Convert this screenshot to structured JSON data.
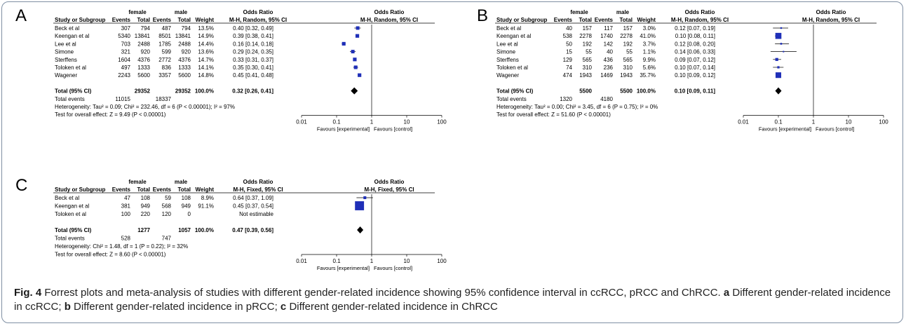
{
  "figure": {
    "caption_label": "Fig. 4",
    "caption_text": "Forrest plots and meta-analysis of studies with different gender-related incidence showing 95% confidence interval in ccRCC, pRCC and ChRCC.",
    "caption_a_label": "a",
    "caption_a": "Different gender-related incidence in ccRCC;",
    "caption_b_label": "b",
    "caption_b": "Different gender-related incidence in pRCC;",
    "caption_c_label": "c",
    "caption_c": "Different gender-related incidence in ChRCC"
  },
  "colors": {
    "marker": "#1f2fb8",
    "diamond": "#000000",
    "frame": "#7f8fa3"
  },
  "chart_data": [
    {
      "panel": "A",
      "type": "forest",
      "method": "M-H, Random, 95% CI",
      "group1": "female",
      "group2": "male",
      "col_headers": [
        "Study or Subgroup",
        "Events",
        "Total",
        "Events",
        "Total",
        "Weight"
      ],
      "or_header": "Odds Ratio",
      "studies": [
        {
          "name": "Beck et al",
          "e1": "307",
          "t1": "794",
          "e2": "487",
          "t2": "794",
          "weight": "13.5%",
          "ci_text": "0.40 [0.32, 0.49]",
          "or": 0.4,
          "lo": 0.32,
          "hi": 0.49,
          "w": 13.5
        },
        {
          "name": "Keengan et al",
          "e1": "5340",
          "t1": "13841",
          "e2": "8501",
          "t2": "13841",
          "weight": "14.9%",
          "ci_text": "0.39 [0.38, 0.41]",
          "or": 0.39,
          "lo": 0.38,
          "hi": 0.41,
          "w": 14.9
        },
        {
          "name": "Lee et al",
          "e1": "703",
          "t1": "2488",
          "e2": "1785",
          "t2": "2488",
          "weight": "14.4%",
          "ci_text": "0.16 [0.14, 0.18]",
          "or": 0.16,
          "lo": 0.14,
          "hi": 0.18,
          "w": 14.4
        },
        {
          "name": "Simone",
          "e1": "321",
          "t1": "920",
          "e2": "599",
          "t2": "920",
          "weight": "13.6%",
          "ci_text": "0.29 [0.24, 0.35]",
          "or": 0.29,
          "lo": 0.24,
          "hi": 0.35,
          "w": 13.6
        },
        {
          "name": "Sterffens",
          "e1": "1604",
          "t1": "4376",
          "e2": "2772",
          "t2": "4376",
          "weight": "14.7%",
          "ci_text": "0.33 [0.31, 0.37]",
          "or": 0.33,
          "lo": 0.31,
          "hi": 0.37,
          "w": 14.7
        },
        {
          "name": "Toloken et  al",
          "e1": "497",
          "t1": "1333",
          "e2": "836",
          "t2": "1333",
          "weight": "14.1%",
          "ci_text": "0.35 [0.30, 0.41]",
          "or": 0.35,
          "lo": 0.3,
          "hi": 0.41,
          "w": 14.1
        },
        {
          "name": "Wagener",
          "e1": "2243",
          "t1": "5600",
          "e2": "3357",
          "t2": "5600",
          "weight": "14.8%",
          "ci_text": "0.45 [0.41, 0.48]",
          "or": 0.45,
          "lo": 0.41,
          "hi": 0.48,
          "w": 14.8
        }
      ],
      "total": {
        "label": "Total (95% CI)",
        "t1": "29352",
        "t2": "29352",
        "weight": "100.0%",
        "ci_text": "0.32 [0.26, 0.41]",
        "or": 0.32,
        "lo": 0.26,
        "hi": 0.41
      },
      "events": {
        "label": "Total events",
        "e1": "11015",
        "e2": "18337"
      },
      "heterogeneity": "Heterogeneity: Tau² = 0.09; Chi² = 232.46, df = 6 (P < 0.00001); I² = 97%",
      "overall": "Test for overall effect: Z = 9.49 (P < 0.00001)",
      "x_ticks": [
        0.01,
        0.1,
        1,
        10,
        100
      ],
      "x_tick_labels": [
        "0.01",
        "0.1",
        "1",
        "10",
        "100"
      ],
      "x_scale": "log",
      "favours_left": "Favours [experimental]",
      "favours_right": "Favours [control]"
    },
    {
      "panel": "B",
      "type": "forest",
      "method": "M-H, Random, 95% CI",
      "group1": "female",
      "group2": "male",
      "col_headers": [
        "Study or Subgroup",
        "Events",
        "Total",
        "Events",
        "Total",
        "Weight"
      ],
      "or_header": "Odds Ratio",
      "studies": [
        {
          "name": "Beck et al",
          "e1": "40",
          "t1": "157",
          "e2": "117",
          "t2": "157",
          "weight": "3.0%",
          "ci_text": "0.12 [0.07, 0.19]",
          "or": 0.12,
          "lo": 0.07,
          "hi": 0.19,
          "w": 3.0
        },
        {
          "name": "Keengan et al",
          "e1": "538",
          "t1": "2278",
          "e2": "1740",
          "t2": "2278",
          "weight": "41.0%",
          "ci_text": "0.10 [0.08, 0.11]",
          "or": 0.1,
          "lo": 0.08,
          "hi": 0.11,
          "w": 41.0
        },
        {
          "name": "Lee et al",
          "e1": "50",
          "t1": "192",
          "e2": "142",
          "t2": "192",
          "weight": "3.7%",
          "ci_text": "0.12 [0.08, 0.20]",
          "or": 0.12,
          "lo": 0.08,
          "hi": 0.2,
          "w": 3.7
        },
        {
          "name": "Simone",
          "e1": "15",
          "t1": "55",
          "e2": "40",
          "t2": "55",
          "weight": "1.1%",
          "ci_text": "0.14 [0.06, 0.33]",
          "or": 0.14,
          "lo": 0.06,
          "hi": 0.33,
          "w": 1.1
        },
        {
          "name": "Sterffens",
          "e1": "129",
          "t1": "565",
          "e2": "436",
          "t2": "565",
          "weight": "9.9%",
          "ci_text": "0.09 [0.07, 0.12]",
          "or": 0.09,
          "lo": 0.07,
          "hi": 0.12,
          "w": 9.9
        },
        {
          "name": "Toloken et  al",
          "e1": "74",
          "t1": "310",
          "e2": "236",
          "t2": "310",
          "weight": "5.6%",
          "ci_text": "0.10 [0.07, 0.14]",
          "or": 0.1,
          "lo": 0.07,
          "hi": 0.14,
          "w": 5.6
        },
        {
          "name": "Wagener",
          "e1": "474",
          "t1": "1943",
          "e2": "1469",
          "t2": "1943",
          "weight": "35.7%",
          "ci_text": "0.10 [0.09, 0.12]",
          "or": 0.1,
          "lo": 0.09,
          "hi": 0.12,
          "w": 35.7
        }
      ],
      "total": {
        "label": "Total (95% CI)",
        "t1": "5500",
        "t2": "5500",
        "weight": "100.0%",
        "ci_text": "0.10 [0.09, 0.11]",
        "or": 0.1,
        "lo": 0.09,
        "hi": 0.11
      },
      "events": {
        "label": "Total events",
        "e1": "1320",
        "e2": "4180"
      },
      "heterogeneity": "Heterogeneity: Tau² = 0.00; Chi² = 3.45, df = 6 (P = 0.75); I² = 0%",
      "overall": "Test for overall effect: Z = 51.60 (P < 0.00001)",
      "x_ticks": [
        0.01,
        0.1,
        1,
        10,
        100
      ],
      "x_tick_labels": [
        "0.01",
        "0.1",
        "1",
        "10",
        "100"
      ],
      "x_scale": "log",
      "favours_left": "Favours [experimental]",
      "favours_right": "Favours [control]"
    },
    {
      "panel": "C",
      "type": "forest",
      "method": "M-H, Fixed, 95% CI",
      "group1": "female",
      "group2": "male",
      "col_headers": [
        "Study or Subgroup",
        "Events",
        "Total",
        "Events",
        "Total",
        "Weight"
      ],
      "or_header": "Odds Ratio",
      "studies": [
        {
          "name": "Beck et al",
          "e1": "47",
          "t1": "108",
          "e2": "59",
          "t2": "108",
          "weight": "8.9%",
          "ci_text": "0.64 [0.37, 1.09]",
          "or": 0.64,
          "lo": 0.37,
          "hi": 1.09,
          "w": 8.9
        },
        {
          "name": "Keengan et al",
          "e1": "381",
          "t1": "949",
          "e2": "568",
          "t2": "949",
          "weight": "91.1%",
          "ci_text": "0.45 [0.37, 0.54]",
          "or": 0.45,
          "lo": 0.37,
          "hi": 0.54,
          "w": 91.1
        },
        {
          "name": "Toloken et  al",
          "e1": "100",
          "t1": "220",
          "e2": "120",
          "t2": "0",
          "weight": "",
          "ci_text": "Not estimable",
          "or": null,
          "lo": null,
          "hi": null,
          "w": 0
        }
      ],
      "total": {
        "label": "Total (95% CI)",
        "t1": "1277",
        "t2": "1057",
        "weight": "100.0%",
        "ci_text": "0.47 [0.39, 0.56]",
        "or": 0.47,
        "lo": 0.39,
        "hi": 0.56
      },
      "events": {
        "label": "Total events",
        "e1": "528",
        "e2": "747"
      },
      "heterogeneity": "Heterogeneity: Chi² = 1.48, df = 1 (P = 0.22); I² = 32%",
      "overall": "Test for overall effect: Z = 8.60 (P < 0.00001)",
      "x_ticks": [
        0.01,
        0.1,
        1,
        10,
        100
      ],
      "x_tick_labels": [
        "0.01",
        "0.1",
        "1",
        "10",
        "100"
      ],
      "x_scale": "log",
      "favours_left": "Favours [experimental]",
      "favours_right": "Favours [control]"
    }
  ]
}
